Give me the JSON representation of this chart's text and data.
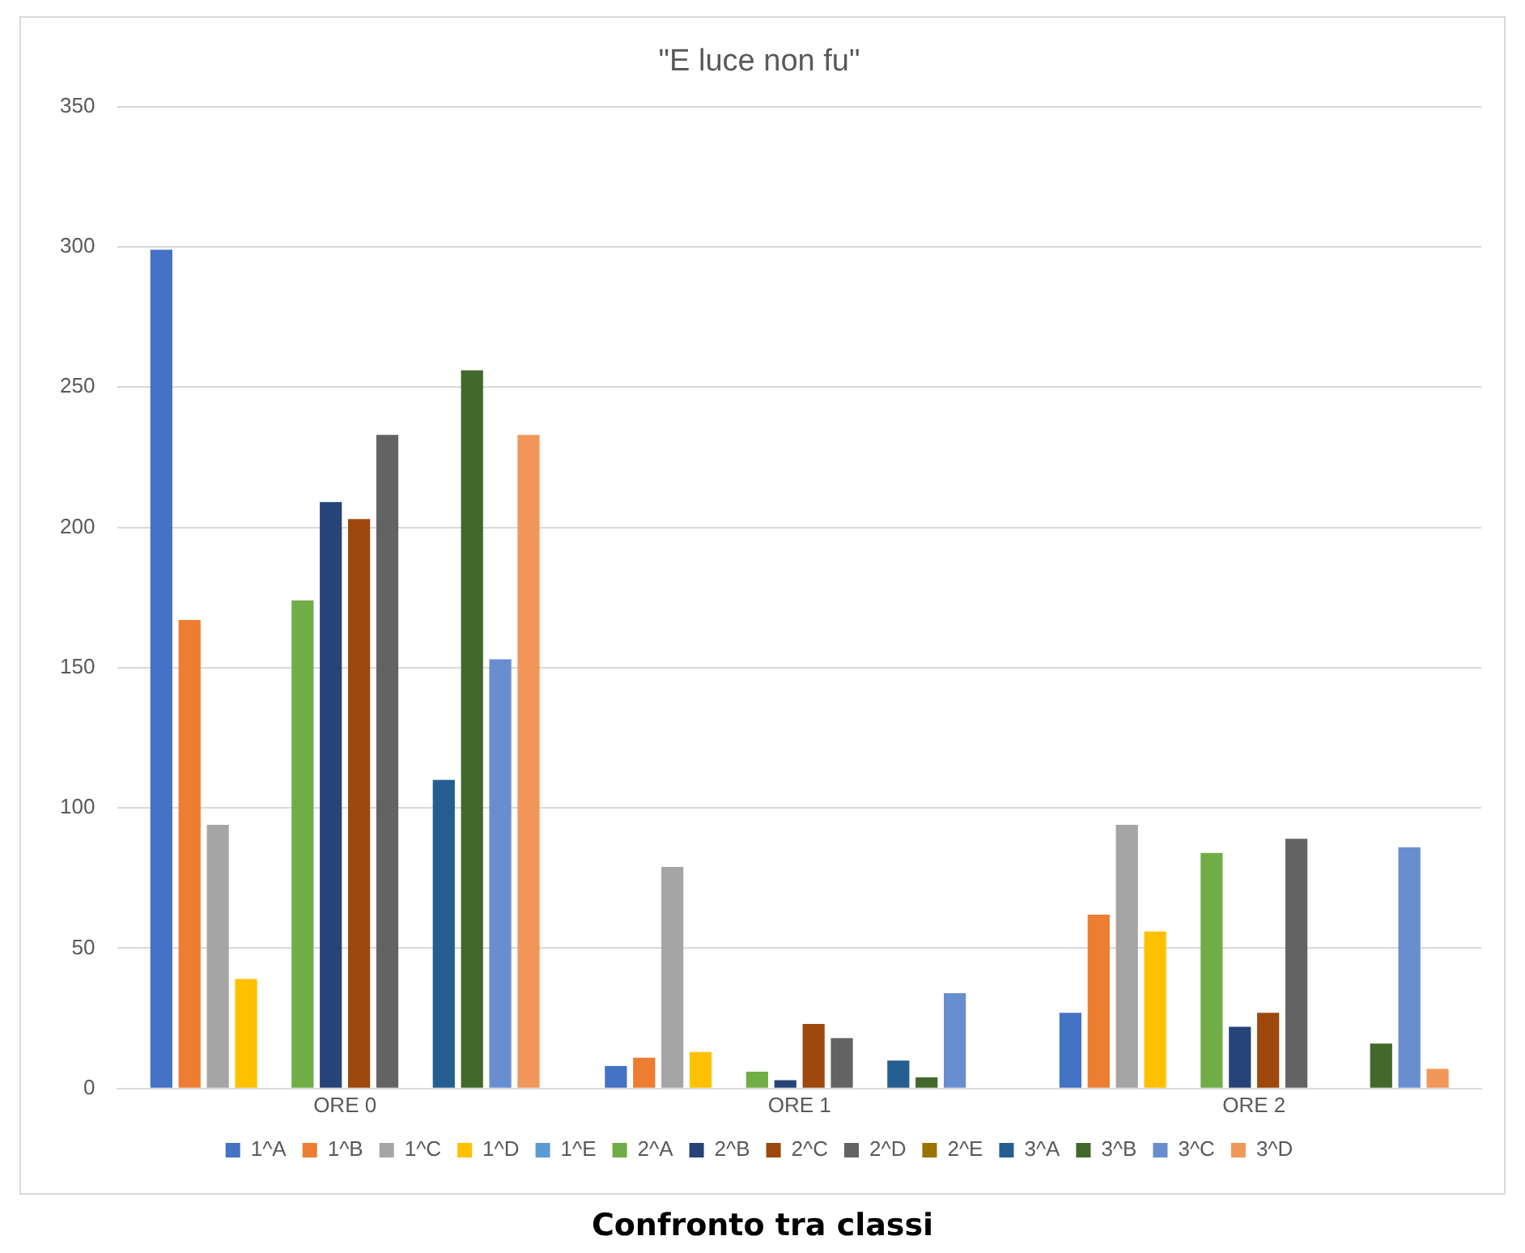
{
  "chart_data": {
    "type": "bar",
    "title": "\"E luce non fu\"",
    "categories": [
      "ORE 0",
      "ORE 1",
      "ORE 2"
    ],
    "series": [
      {
        "name": "1^A",
        "color": "#4472c4",
        "values": [
          299,
          8,
          27
        ]
      },
      {
        "name": "1^B",
        "color": "#ed7d31",
        "values": [
          167,
          11,
          62
        ]
      },
      {
        "name": "1^C",
        "color": "#a5a5a5",
        "values": [
          94,
          79,
          94
        ]
      },
      {
        "name": "1^D",
        "color": "#ffc000",
        "values": [
          39,
          13,
          56
        ]
      },
      {
        "name": "1^E",
        "color": "#5b9bd5",
        "values": [
          0,
          0,
          0
        ]
      },
      {
        "name": "2^A",
        "color": "#70ad47",
        "values": [
          174,
          6,
          84
        ]
      },
      {
        "name": "2^B",
        "color": "#264478",
        "values": [
          209,
          3,
          22
        ]
      },
      {
        "name": "2^C",
        "color": "#9e480e",
        "values": [
          203,
          23,
          27
        ]
      },
      {
        "name": "2^D",
        "color": "#636363",
        "values": [
          233,
          18,
          89
        ]
      },
      {
        "name": "2^E",
        "color": "#997300",
        "values": [
          0,
          0,
          0
        ]
      },
      {
        "name": "3^A",
        "color": "#255e91",
        "values": [
          110,
          10,
          0
        ]
      },
      {
        "name": "3^B",
        "color": "#43682b",
        "values": [
          256,
          4,
          16
        ]
      },
      {
        "name": "3^C",
        "color": "#698ed0",
        "values": [
          153,
          34,
          86
        ]
      },
      {
        "name": "3^D",
        "color": "#f1975a",
        "values": [
          233,
          0,
          7
        ]
      }
    ],
    "ylim": [
      0,
      350
    ],
    "yticks": [
      0,
      50,
      100,
      150,
      200,
      250,
      300,
      350
    ],
    "grid": "y",
    "legend": "bottom",
    "annotations": [
      "Confronto tra classi"
    ]
  }
}
